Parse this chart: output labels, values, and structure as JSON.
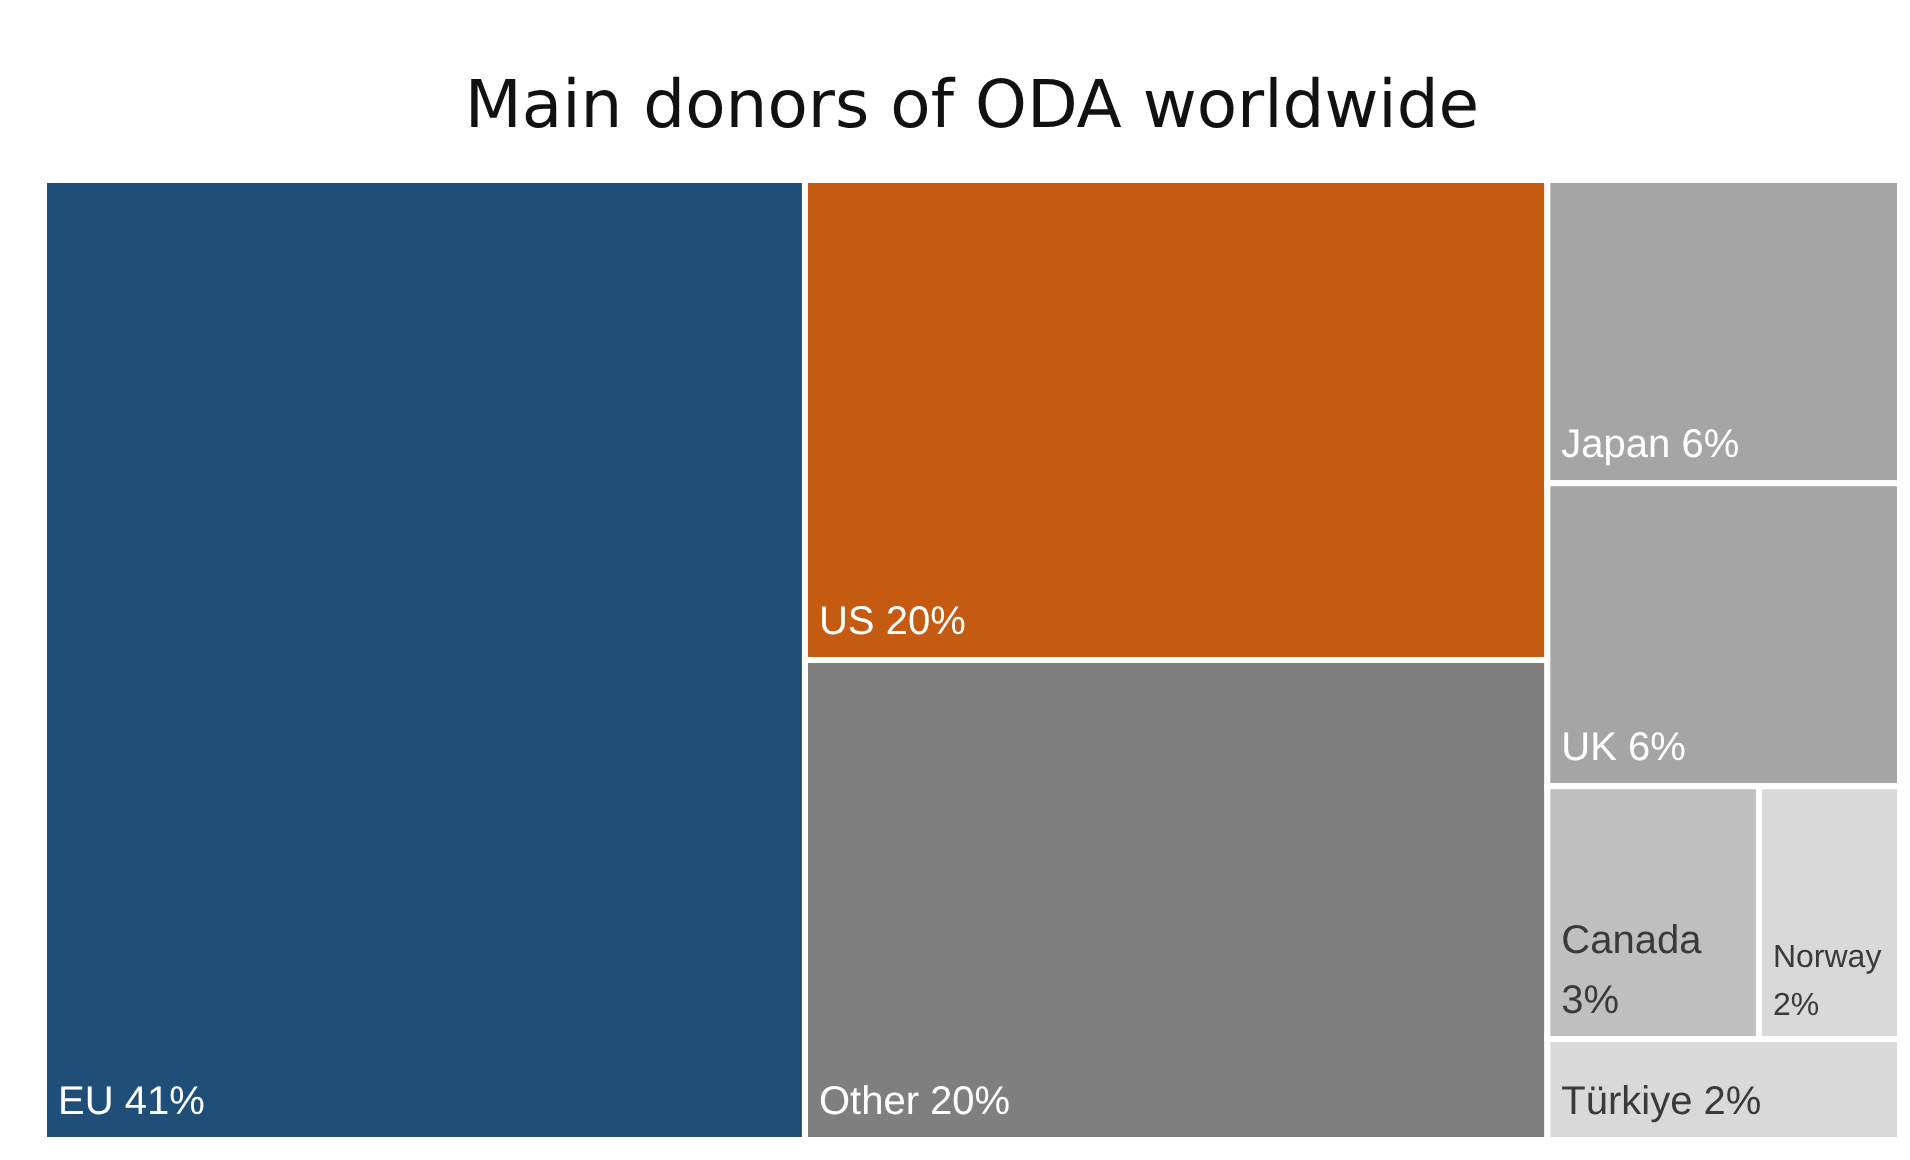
{
  "chart_data": {
    "type": "other",
    "title": "Main donors of ODA worldwide",
    "categories": [
      "EU",
      "US",
      "Other",
      "Japan",
      "UK",
      "Canada",
      "Norway",
      "Türkiye"
    ],
    "values": [
      41,
      20,
      20,
      6,
      6,
      3,
      2,
      2
    ],
    "value_labels": [
      "41%",
      "20%",
      "20%",
      "6%",
      "6%",
      "3%",
      "2%",
      "2%"
    ],
    "colors": [
      "#1f4e79",
      "#c55a11",
      "#7f7f7f",
      "#a5a5a5",
      "#a5a5a5",
      "#bfbfbf",
      "#d9d9d9",
      "#d9d9d9"
    ]
  }
}
